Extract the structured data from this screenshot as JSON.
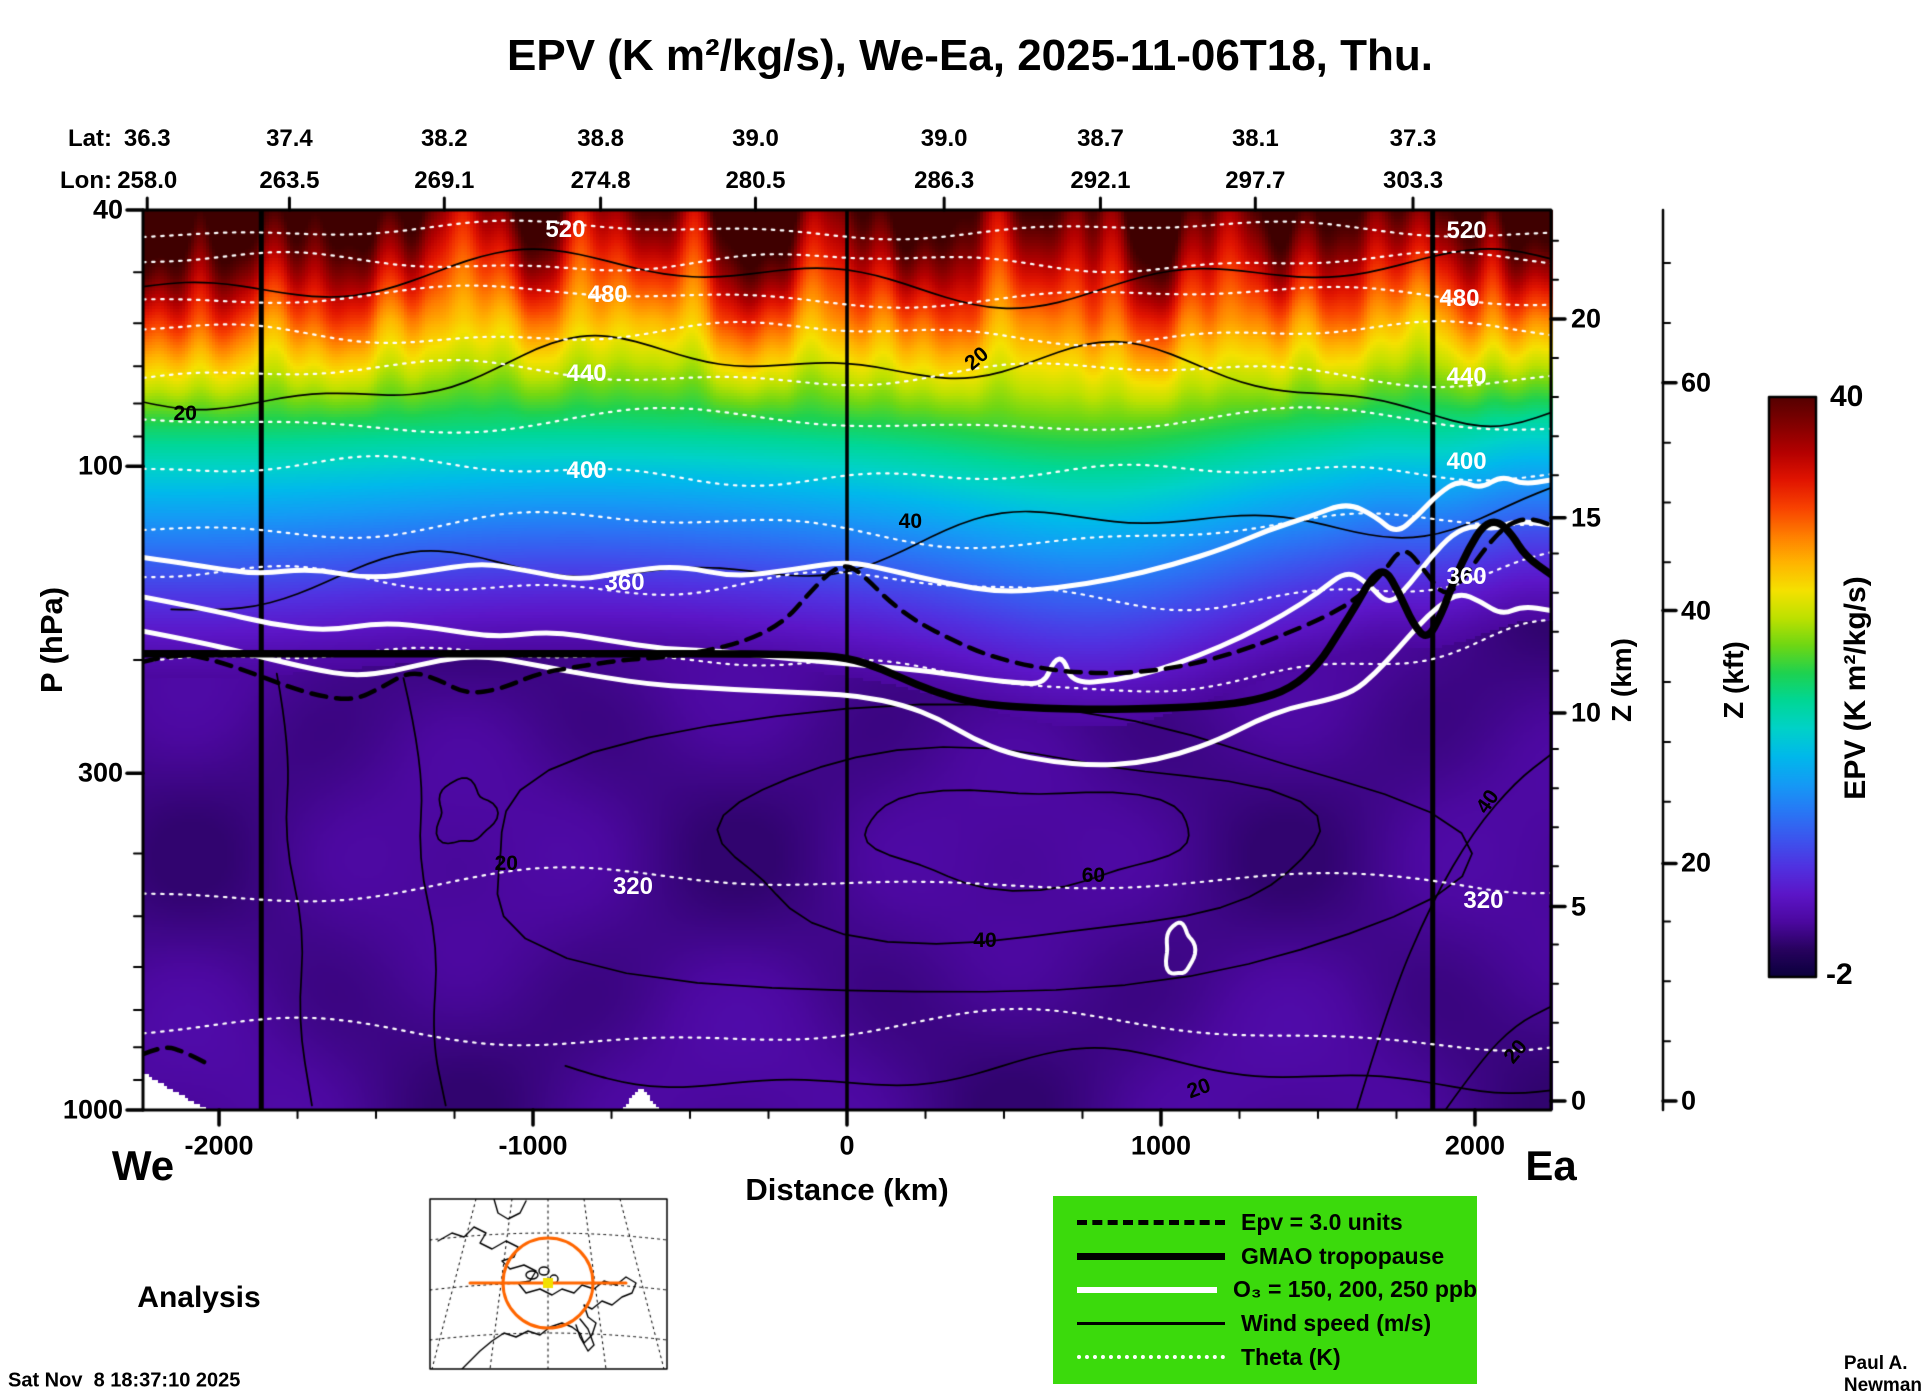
{
  "title": "EPV (K m²/kg/s), We-Ea, 2025-11-06T18, Thu.",
  "top_axis": {
    "lat_label": "Lat:",
    "lon_label": "Lon:",
    "lat": [
      "36.3",
      "37.4",
      "38.2",
      "38.8",
      "39.0",
      "39.0",
      "38.7",
      "38.1",
      "37.3"
    ],
    "lon": [
      "258.0",
      "263.5",
      "269.1",
      "274.8",
      "280.5",
      "286.3",
      "292.1",
      "297.7",
      "303.3"
    ]
  },
  "axes": {
    "pressure": {
      "label": "P (hPa)",
      "ticks": [
        "40",
        "100",
        "300",
        "1000"
      ]
    },
    "distance": {
      "label": "Distance (km)",
      "ticks": [
        "-2000",
        "-1000",
        "0",
        "1000",
        "2000"
      ]
    },
    "z_km": {
      "label": "Z (km)",
      "ticks": [
        "20",
        "15",
        "10",
        "5",
        "0"
      ]
    },
    "z_kft": {
      "label": "Z (kft)",
      "ticks": [
        "60",
        "40",
        "20",
        "0"
      ]
    }
  },
  "colorbar": {
    "label": "EPV (K m²/kg/s)",
    "max": "40",
    "min": "-2"
  },
  "contour_labels": {
    "theta": [
      "520",
      "520",
      "480",
      "480",
      "440",
      "440",
      "400",
      "400",
      "360",
      "360",
      "320",
      "320"
    ],
    "wind": [
      "20",
      "20",
      "40",
      "60",
      "40",
      "20",
      "20",
      "20",
      "40"
    ]
  },
  "legend": {
    "items": [
      {
        "label": "Epv = 3.0 units"
      },
      {
        "label": "GMAO tropopause"
      },
      {
        "label": "O₃ = 150, 200, 250 ppb"
      },
      {
        "label": "Wind speed (m/s)"
      },
      {
        "label": "Theta (K)"
      }
    ]
  },
  "annotations": {
    "west": "We",
    "east": "Ea",
    "analysis": "Analysis"
  },
  "footer": {
    "timestamp": "Sat Nov  8 18:37:10 2025",
    "credit": "Paul A. Newman (NASA"
  },
  "chart_data": {
    "type": "heatmap",
    "title": "EPV (K m²/kg/s), We-Ea, 2025-11-06T18, Thu.",
    "xlabel": "Distance (km)",
    "ylabel": "P (hPa)",
    "x_ticks_km": [
      -2000,
      -1000,
      0,
      1000,
      2000
    ],
    "x_range_km": [
      -2242,
      2242
    ],
    "y_scale": "log",
    "y_ticks_hPa": [
      40,
      100,
      300,
      1000
    ],
    "y_range_hPa": [
      40,
      1000
    ],
    "right_axis_z_km_ticks": [
      0,
      5,
      10,
      15,
      20
    ],
    "far_right_axis_z_kft_ticks": [
      0,
      20,
      40,
      60
    ],
    "top_axis_lat": [
      36.3,
      37.4,
      38.2,
      38.8,
      39.0,
      39.0,
      38.7,
      38.1,
      37.3
    ],
    "top_axis_lon": [
      258.0,
      263.5,
      269.1,
      274.8,
      280.5,
      286.3,
      292.1,
      297.7,
      303.3
    ],
    "fill_field": "EPV (K m²/kg/s)",
    "fill_range": [
      -2,
      40
    ],
    "overlays": [
      {
        "name": "Theta (K)",
        "style": "white dotted",
        "labeled_levels": [
          320,
          360,
          400,
          440,
          480,
          520
        ]
      },
      {
        "name": "Wind speed (m/s)",
        "style": "thin black solid",
        "labeled_levels": [
          20,
          40,
          60
        ]
      },
      {
        "name": "O₃ (ppb)",
        "style": "thick white solid",
        "levels": [
          150,
          200,
          250
        ]
      },
      {
        "name": "GMAO tropopause",
        "style": "thick black solid"
      },
      {
        "name": "Epv = 3.0 units",
        "style": "thick black dashed",
        "level": 3.0
      }
    ],
    "vertical_reference_lines_km": [
      -1865,
      0,
      1865
    ],
    "section_endpoints": {
      "west": "We",
      "east": "Ea"
    },
    "data_type_label": "Analysis",
    "field_structure": "High EPV (20-40, yellow/orange/dark red) in upper stratosphere near 40-70 hPa; mid values (8-18, cyan/blue) 100-200 hPa; low tropospheric EPV (1-3, purple) below ~200 hPa tropopause; tropopause dips between 0 and 1500 km and rises sharply east of 1500 km"
  }
}
